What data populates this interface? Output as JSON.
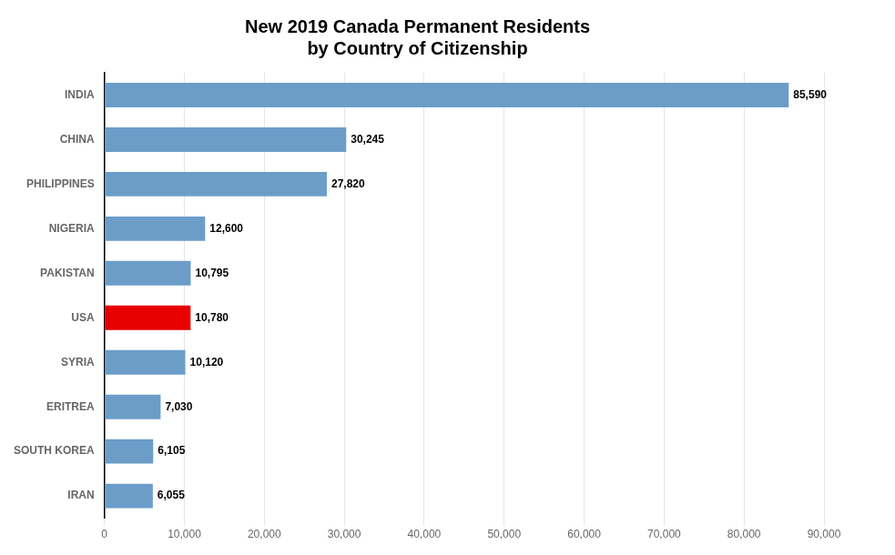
{
  "chart_data": {
    "type": "bar",
    "orientation": "horizontal",
    "title": "New 2019 Canada Permanent Residents\nby Country of Citizenship",
    "categories": [
      "IRAN",
      "SOUTH KOREA",
      "ERITREA",
      "SYRIA",
      "USA",
      "PAKISTAN",
      "NIGERIA",
      "PHILIPPINES",
      "CHINA",
      "INDIA"
    ],
    "values": [
      6055,
      6105,
      7030,
      10120,
      10780,
      10795,
      12600,
      27820,
      30245,
      85590
    ],
    "value_labels": [
      "6,055",
      "6,105",
      "7,030",
      "10,120",
      "10,780",
      "10,795",
      "12,600",
      "27,820",
      "30,245",
      "85,590"
    ],
    "colors": [
      "#6b9dc8",
      "#6b9dc8",
      "#6b9dc8",
      "#6b9dc8",
      "#e80000",
      "#6b9dc8",
      "#6b9dc8",
      "#6b9dc8",
      "#6b9dc8",
      "#6b9dc8"
    ],
    "xlim": [
      0,
      90000
    ],
    "xticks": [
      0,
      {
        "value": 10000,
        "label": "10,000"
      },
      {
        "value": 20000,
        "label": "20,000"
      },
      {
        "value": 30000,
        "label": "30,000"
      },
      {
        "value": 40000,
        "label": "40,000"
      },
      {
        "value": 50000,
        "label": "50,000"
      },
      {
        "value": 60000,
        "label": "60,000"
      },
      {
        "value": 70000,
        "label": "70,000"
      },
      {
        "value": 80000,
        "label": "80,000"
      },
      {
        "value": 90000,
        "label": "90,000"
      }
    ],
    "grid": true,
    "data_labels": true
  }
}
